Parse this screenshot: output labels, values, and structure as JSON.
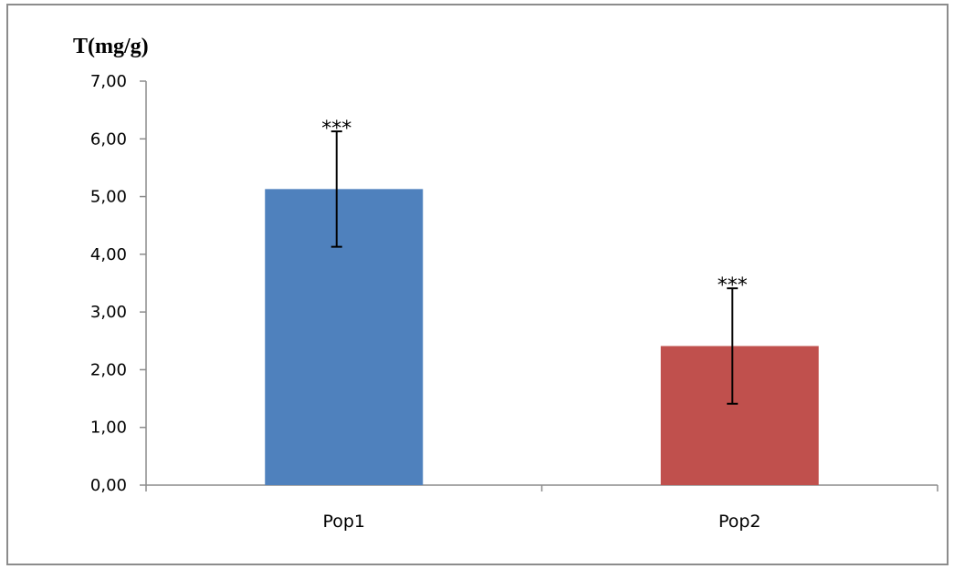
{
  "chart_data": {
    "type": "bar",
    "title": "",
    "ylabel": "T(mg/g)",
    "xlabel": "",
    "categories": [
      "Pop1",
      "Pop2"
    ],
    "values": [
      5.13,
      2.41
    ],
    "error": [
      1.0,
      1.0
    ],
    "significance": [
      "***",
      "***"
    ],
    "colors": [
      "#4f81bd",
      "#c0504d"
    ],
    "ylim": [
      0,
      7
    ],
    "yticks": [
      0,
      1,
      2,
      3,
      4,
      5,
      6,
      7
    ],
    "ytick_labels": [
      "0,00",
      "1,00",
      "2,00",
      "3,00",
      "4,00",
      "5,00",
      "6,00",
      "7,00"
    ],
    "grid": false,
    "legend": "none"
  }
}
